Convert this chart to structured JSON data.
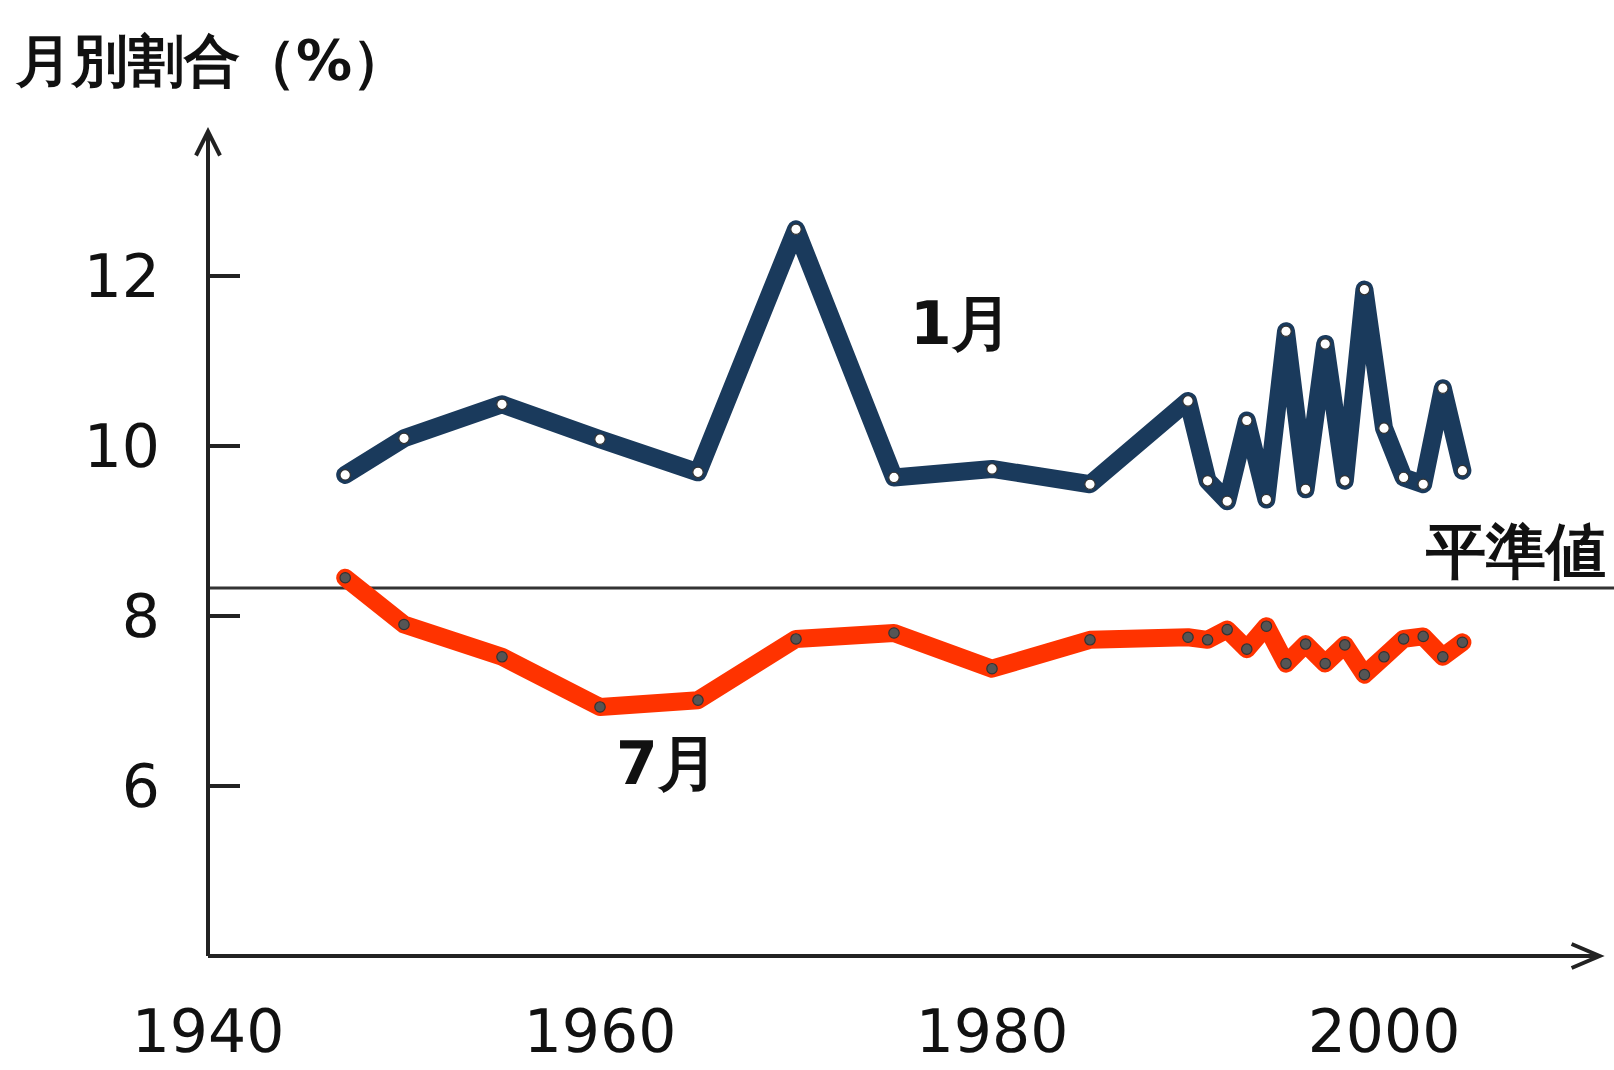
{
  "chart_data": {
    "type": "line",
    "ylabel": "月別割合（%）",
    "x": [
      1947,
      1950,
      1955,
      1960,
      1965,
      1970,
      1975,
      1980,
      1985,
      1990,
      1991,
      1992,
      1993,
      1994,
      1995,
      1996,
      1997,
      1998,
      1999,
      2000,
      2001,
      2002,
      2003,
      2004
    ],
    "series": [
      {
        "name": "1月",
        "color": "#1a3a5c",
        "values": [
          9.66,
          10.09,
          10.49,
          10.08,
          9.69,
          12.55,
          9.63,
          9.73,
          9.55,
          10.53,
          9.59,
          9.35,
          10.3,
          9.37,
          11.35,
          9.49,
          11.2,
          9.59,
          11.84,
          10.21,
          9.63,
          9.55,
          10.68,
          9.71
        ]
      },
      {
        "name": "7月",
        "color": "#ff3300",
        "values": [
          8.45,
          7.9,
          7.52,
          6.93,
          7.01,
          7.73,
          7.8,
          7.38,
          7.72,
          7.75,
          7.72,
          7.84,
          7.61,
          7.88,
          7.44,
          7.67,
          7.44,
          7.66,
          7.31,
          7.52,
          7.73,
          7.76,
          7.52,
          7.69
        ]
      }
    ],
    "xlim": [
      1940,
      2011
    ],
    "xticks": [
      1940,
      1960,
      1980,
      2000
    ],
    "ylim": [
      4,
      13.7
    ],
    "yticks": [
      6,
      8,
      10,
      12
    ],
    "ref_lines": [
      {
        "axis": "y",
        "value": 8.33,
        "label": "平準値",
        "color": "#333333"
      }
    ],
    "grid": false,
    "marker": "circle",
    "line_style": "solid"
  }
}
